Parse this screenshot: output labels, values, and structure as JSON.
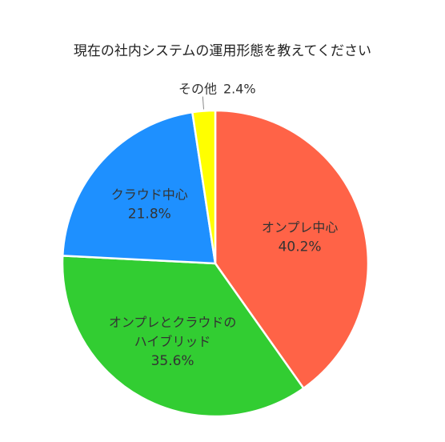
{
  "chart_data": {
    "type": "pie",
    "title": "現在の社内システムの運用形態を教えてください",
    "start_angle_deg": 0,
    "direction": "clockwise",
    "slices": [
      {
        "label": "オンプレ中心",
        "label_lines": [
          "オンプレ中心"
        ],
        "value": 40.2,
        "value_text": "40.2%",
        "color": "#FF6347"
      },
      {
        "label": "オンプレとクラウドのハイブリッド",
        "label_lines": [
          "オンプレとクラウドの",
          "ハイブリッド"
        ],
        "value": 35.6,
        "value_text": "35.6%",
        "color": "#32CD32"
      },
      {
        "label": "クラウド中心",
        "label_lines": [
          "クラウド中心"
        ],
        "value": 21.8,
        "value_text": "21.8%",
        "color": "#1E90FF"
      },
      {
        "label": "その他",
        "label_lines": [
          "その他"
        ],
        "value": 2.4,
        "value_text": "2.4%",
        "color": "#FFFF00"
      }
    ]
  }
}
